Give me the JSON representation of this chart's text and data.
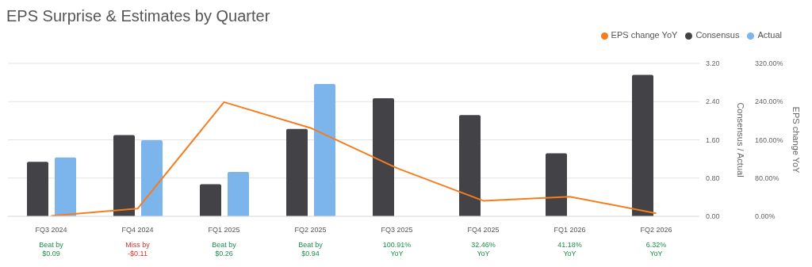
{
  "chart_data": {
    "type": "bar",
    "title": "EPS Surprise & Estimates by Quarter",
    "categories": [
      "FQ3 2024",
      "FQ4 2024",
      "FQ1 2025",
      "FQ2 2025",
      "FQ3 2025",
      "FQ4 2025",
      "FQ1 2026",
      "FQ2 2026"
    ],
    "series": [
      {
        "name": "EPS change YoY",
        "type": "line",
        "axis": "y2",
        "color": "#f57c1f",
        "values": [
          1,
          16,
          239,
          185,
          100.91,
          32.46,
          41.18,
          6.32
        ]
      },
      {
        "name": "Consensus",
        "color": "#434347",
        "values": [
          1.14,
          1.7,
          0.67,
          1.83,
          2.47,
          2.12,
          1.32,
          2.96
        ]
      },
      {
        "name": "Actual",
        "color": "#7cb5ec",
        "values": [
          1.23,
          1.59,
          0.93,
          2.77,
          null,
          null,
          null,
          null
        ]
      }
    ],
    "ylabel": "Consensus / Actual",
    "y2label": "EPS change YoY",
    "ylim": [
      0,
      3.2
    ],
    "yticks": [
      {
        "value": 0,
        "label": "0.00"
      },
      {
        "value": 0.8,
        "label": "0.80"
      },
      {
        "value": 1.6,
        "label": "1.60"
      },
      {
        "value": 2.4,
        "label": "2.40"
      },
      {
        "value": 3.2,
        "label": "3.20"
      }
    ],
    "y2lim": [
      0,
      320
    ],
    "y2ticks": [
      {
        "value": 0,
        "label": "0.00%"
      },
      {
        "value": 80,
        "label": "80.00%"
      },
      {
        "value": 160,
        "label": "160.00%"
      },
      {
        "value": 240,
        "label": "240.00%"
      },
      {
        "value": 320,
        "label": "320.00%"
      }
    ],
    "annotations": [
      "Beat by\n$0.09",
      "Miss by\n-$0.11",
      "Beat by\n$0.26",
      "Beat by\n$0.94",
      "100.91%\nYoY",
      "32.46%\nYoY",
      "41.18%\nYoY",
      "6.32%\nYoY"
    ],
    "grid": "y",
    "legend": "top right",
    "marker": "none",
    "line_style": "solid"
  }
}
